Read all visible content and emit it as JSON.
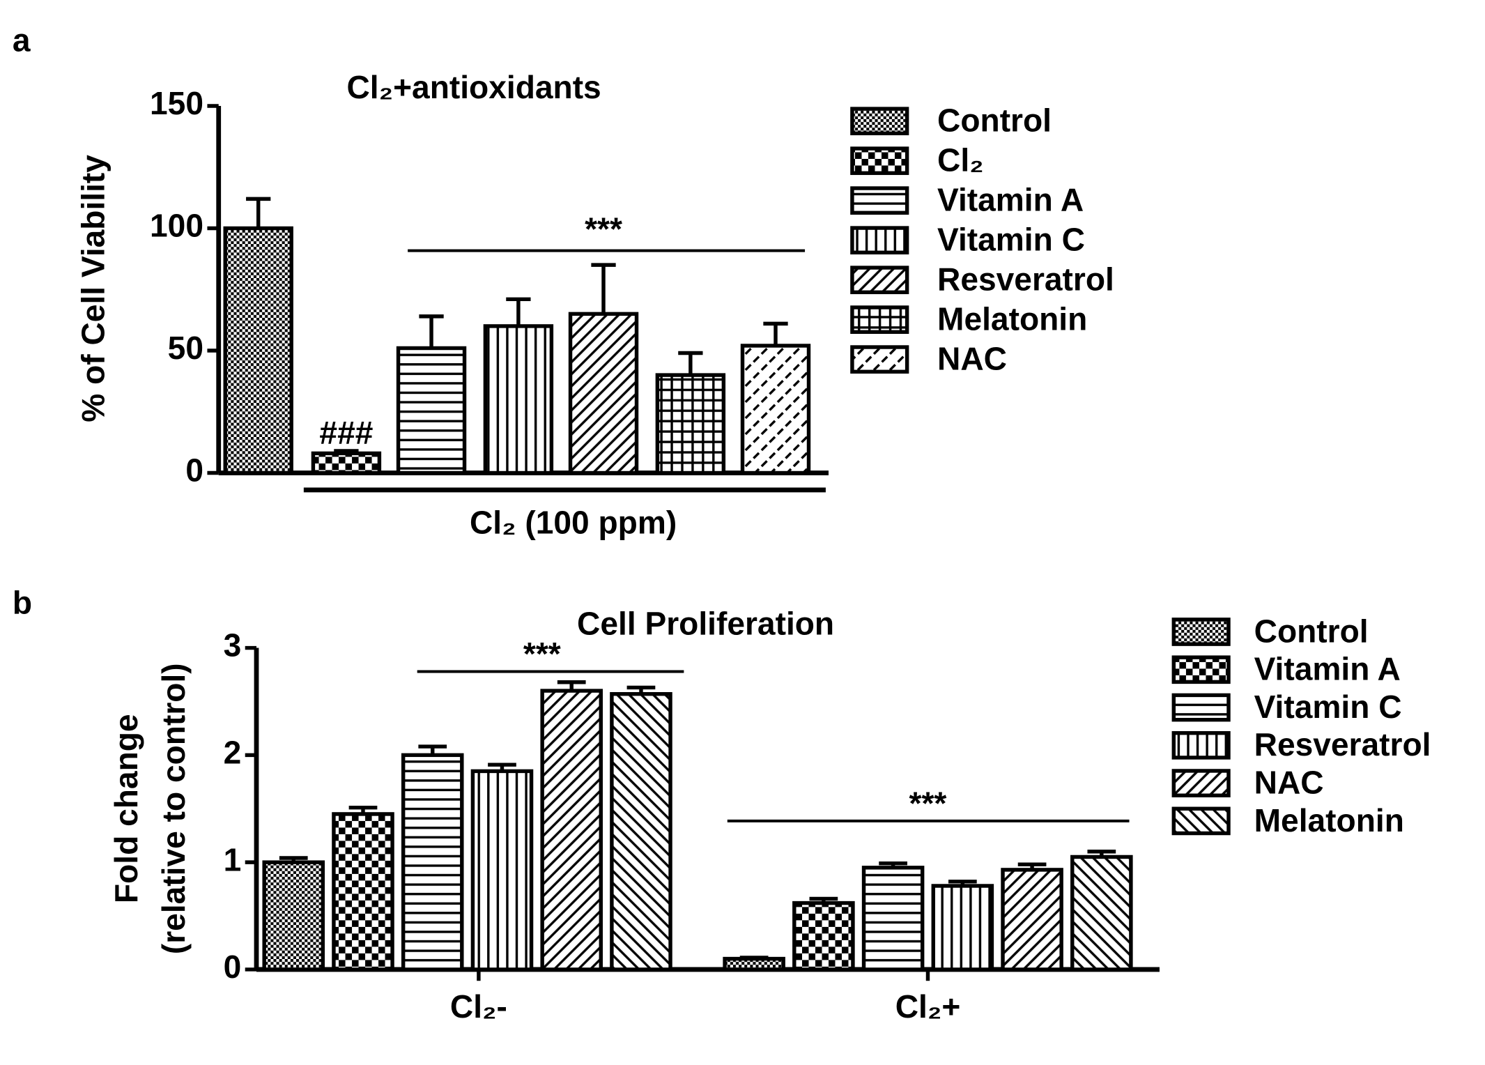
{
  "chart_data": [
    {
      "type": "bar",
      "panel": "a",
      "title": "Cl₂+antioxidants",
      "ylabel": "% of Cell Viability",
      "xlabel": "Cl₂ (100 ppm)",
      "categories": [
        "Control",
        "Cl₂",
        "Vitamin A",
        "Vitamin C",
        "Resveratrol",
        "Melatonin",
        "NAC"
      ],
      "values": [
        100,
        8,
        51,
        60,
        65,
        40,
        52
      ],
      "errors": [
        12,
        1,
        13,
        11,
        20,
        9,
        9
      ],
      "patterns": [
        "dots",
        "checker",
        "hlines",
        "vlines",
        "diag",
        "grid",
        "diagdash"
      ],
      "color": "#000000",
      "ylim": [
        0,
        150
      ],
      "yticks": [
        0,
        50,
        100,
        150
      ],
      "annotations": [
        "###",
        "***"
      ]
    },
    {
      "type": "grouped_bar",
      "panel": "b",
      "title": "Cell Proliferation",
      "ylabel": [
        "Fold change",
        "(relative to control)"
      ],
      "categories": [
        "Cl₂-",
        "Cl₂+"
      ],
      "series": [
        {
          "name": "Control",
          "pattern": "dots",
          "values": [
            1.0,
            0.1
          ],
          "errors": [
            0.04,
            0.01
          ]
        },
        {
          "name": "Vitamin A",
          "pattern": "checker",
          "values": [
            1.45,
            0.62
          ],
          "errors": [
            0.06,
            0.04
          ]
        },
        {
          "name": "Vitamin C",
          "pattern": "hlines",
          "values": [
            2.0,
            0.95
          ],
          "errors": [
            0.08,
            0.04
          ]
        },
        {
          "name": "Resveratrol",
          "pattern": "vlines",
          "values": [
            1.85,
            0.78
          ],
          "errors": [
            0.06,
            0.04
          ]
        },
        {
          "name": "NAC",
          "pattern": "diag",
          "values": [
            2.6,
            0.93
          ],
          "errors": [
            0.08,
            0.05
          ]
        },
        {
          "name": "Melatonin",
          "pattern": "backdiag",
          "values": [
            2.57,
            1.05
          ],
          "errors": [
            0.06,
            0.05
          ]
        }
      ],
      "color": "#000000",
      "ylim": [
        0,
        3
      ],
      "yticks": [
        0,
        1,
        2,
        3
      ],
      "annotations": [
        "***",
        "***"
      ]
    }
  ]
}
